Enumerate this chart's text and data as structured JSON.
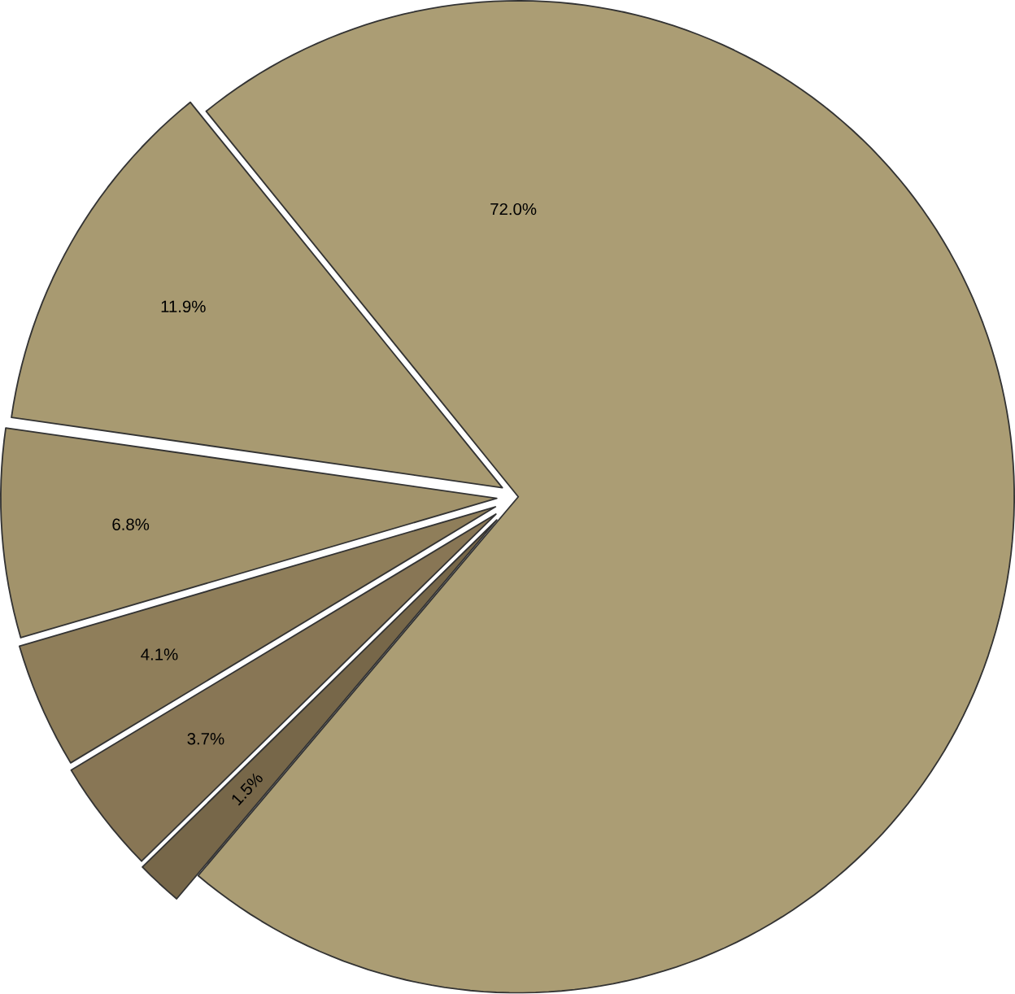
{
  "chart_data": {
    "type": "pie",
    "categories": [
      null,
      null,
      null,
      null,
      null,
      null
    ],
    "values": [
      72.0,
      11.9,
      6.8,
      4.1,
      3.7,
      1.5
    ],
    "value_labels": [
      "72.0%",
      "11.9%",
      "6.8%",
      "4.1%",
      "3.7%",
      "1.5%"
    ],
    "colors": [
      "#ab9d74",
      "#a89a71",
      "#a2936b",
      "#8f7e5a",
      "#887655",
      "#776749"
    ]
  }
}
